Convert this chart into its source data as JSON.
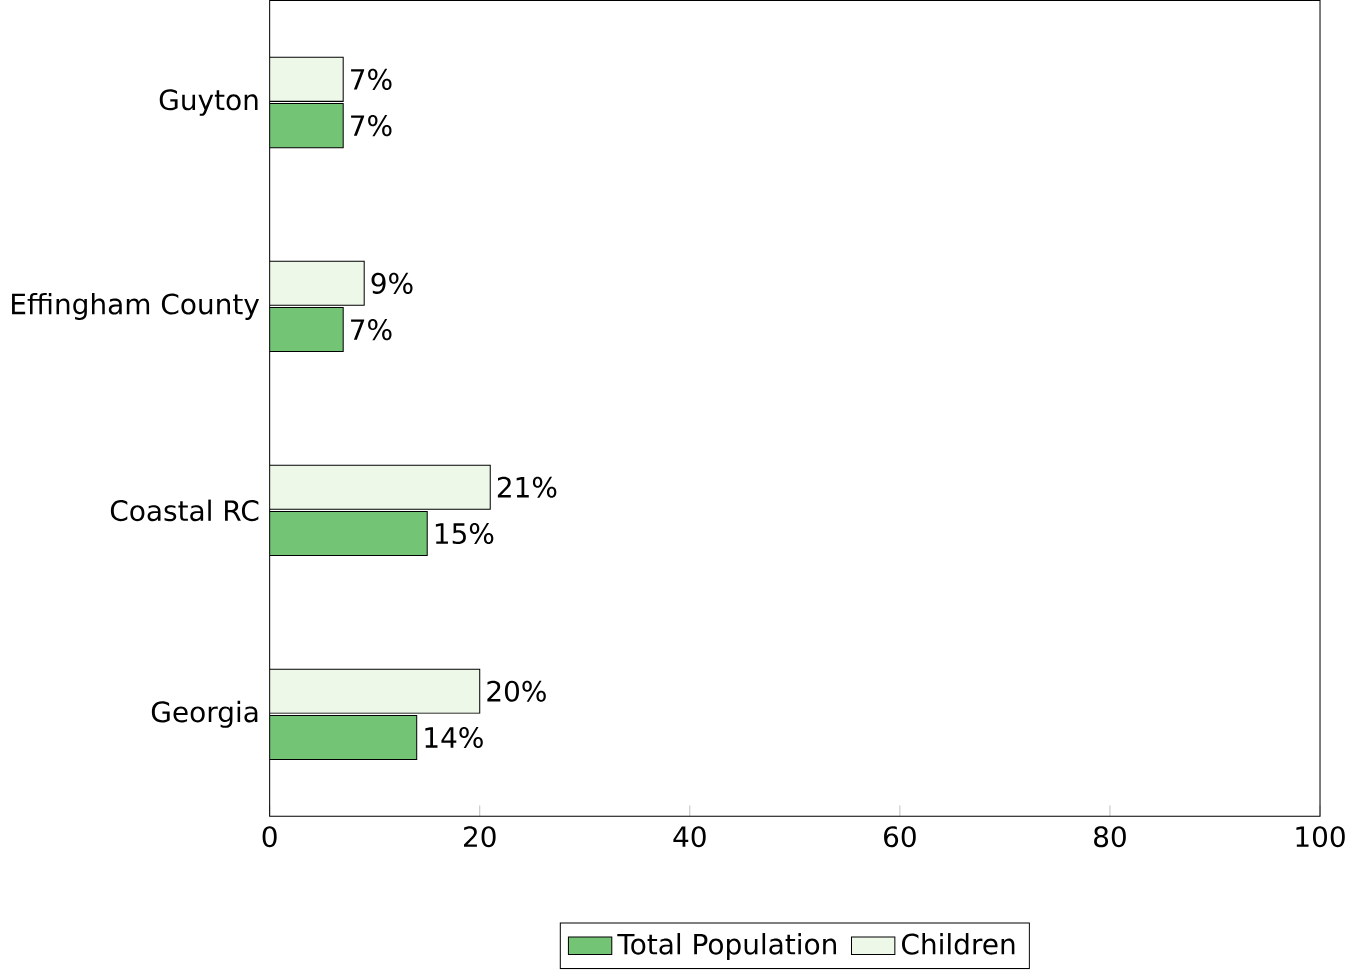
{
  "chart_data": {
    "type": "bar",
    "orientation": "horizontal",
    "categories": [
      "Guyton",
      "Effingham County",
      "Coastal RC",
      "Georgia"
    ],
    "series": [
      {
        "name": "Total Population",
        "color": "#74c476",
        "values": [
          7,
          7,
          15,
          14
        ],
        "value_labels": [
          "7%",
          "7%",
          "15%",
          "14%"
        ]
      },
      {
        "name": "Children",
        "color": "#edf8e9",
        "values": [
          7,
          9,
          21,
          20
        ],
        "value_labels": [
          "7%",
          "9%",
          "21%",
          "20%"
        ]
      }
    ],
    "xlim": [
      0,
      100
    ],
    "xticks": [
      0,
      20,
      40,
      60,
      80,
      100
    ],
    "legend": "bottom",
    "grid": false
  }
}
